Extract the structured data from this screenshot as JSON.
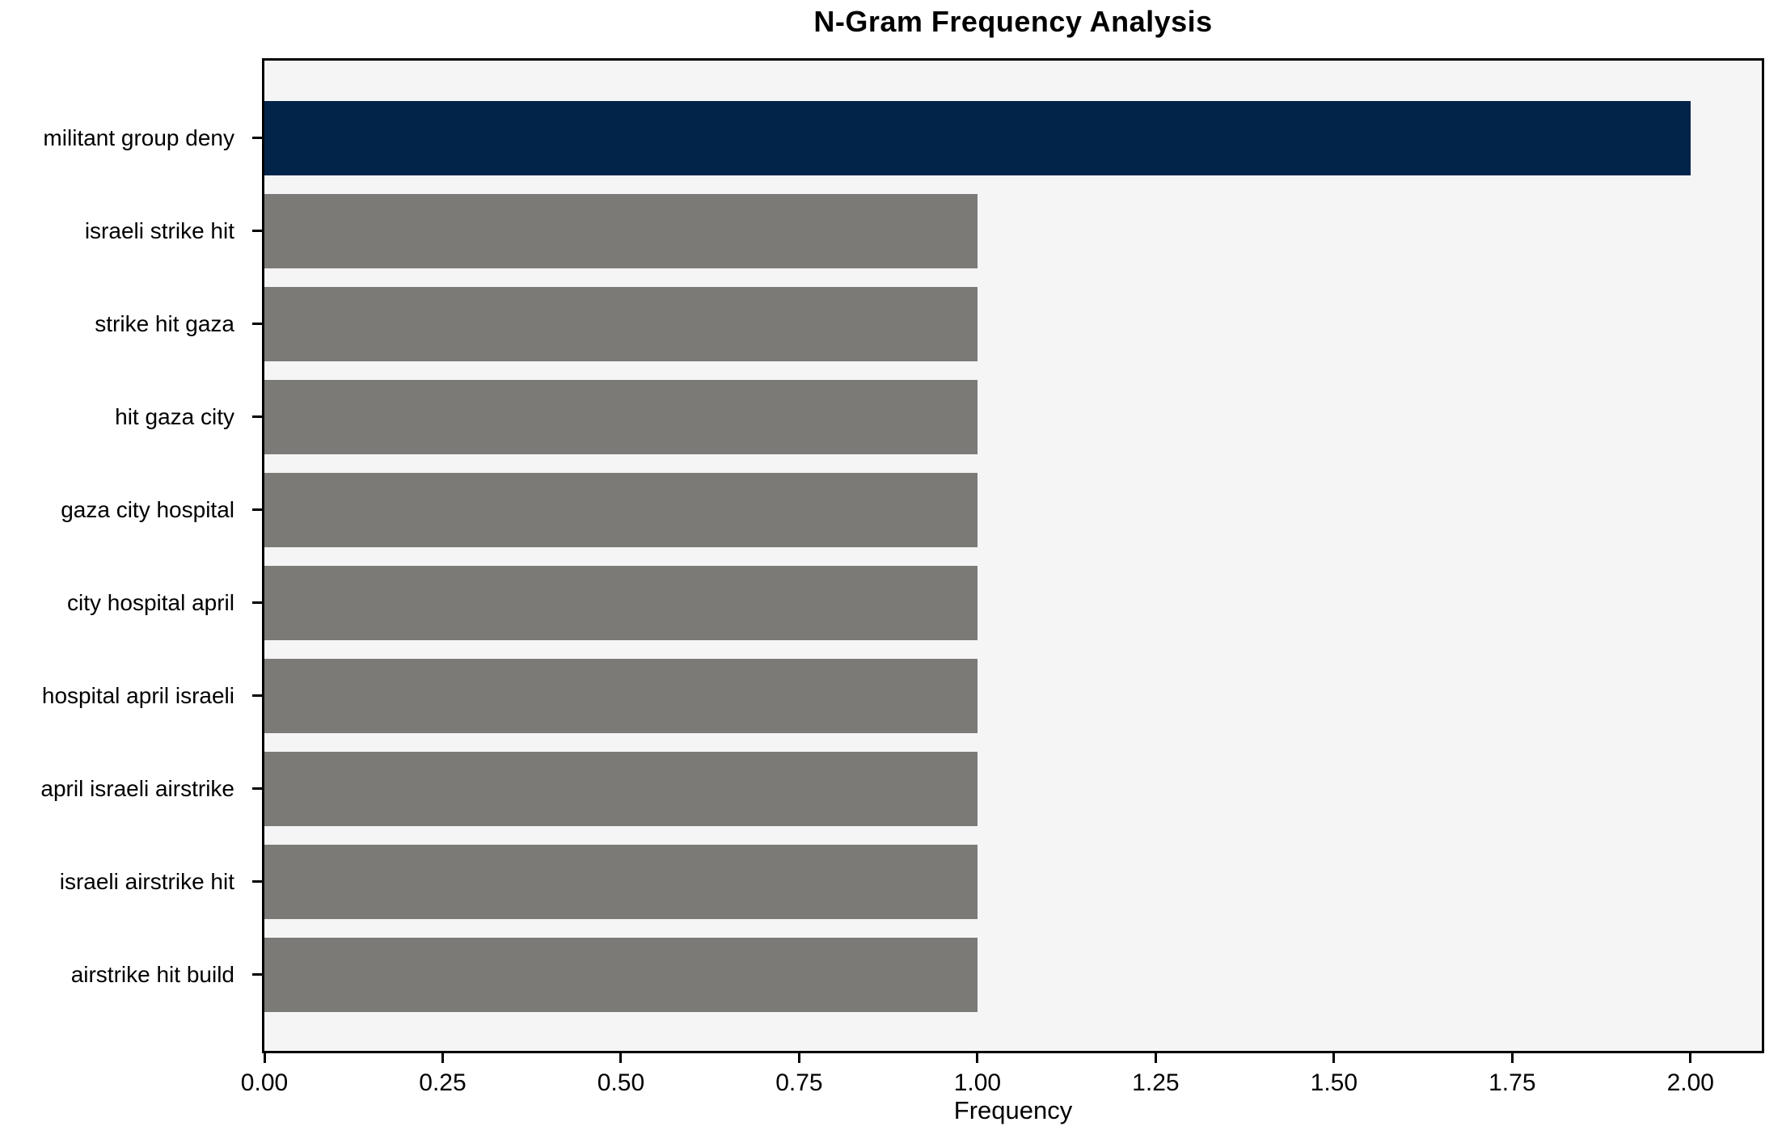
{
  "chart_data": {
    "type": "bar",
    "orientation": "horizontal",
    "title": "N-Gram Frequency Analysis",
    "xlabel": "Frequency",
    "categories": [
      "militant group deny",
      "israeli strike hit",
      "strike hit gaza",
      "hit gaza city",
      "gaza city hospital",
      "city hospital april",
      "hospital april israeli",
      "april israeli airstrike",
      "israeli airstrike hit",
      "airstrike hit build"
    ],
    "values": [
      2,
      1,
      1,
      1,
      1,
      1,
      1,
      1,
      1,
      1
    ],
    "bar_colors": [
      "#022449",
      "#7b7a77",
      "#7b7a77",
      "#7b7a77",
      "#7b7a77",
      "#7b7a77",
      "#7b7a77",
      "#7b7a77",
      "#7b7a77",
      "#7b7a77"
    ],
    "x_ticks": [
      0,
      0.25,
      0.5,
      0.75,
      1.0,
      1.25,
      1.5,
      1.75,
      2.0
    ],
    "x_tick_labels": [
      "0.00",
      "0.25",
      "0.50",
      "0.75",
      "1.00",
      "1.25",
      "1.50",
      "1.75",
      "2.00"
    ],
    "xlim": [
      0,
      2.1
    ],
    "grid": false,
    "legend": null,
    "plot_background": "#f5f5f5",
    "figure_background": "#ffffff",
    "highlight_color": "#022449",
    "default_bar_color": "#7b7a77",
    "axis_color": "#000000"
  }
}
